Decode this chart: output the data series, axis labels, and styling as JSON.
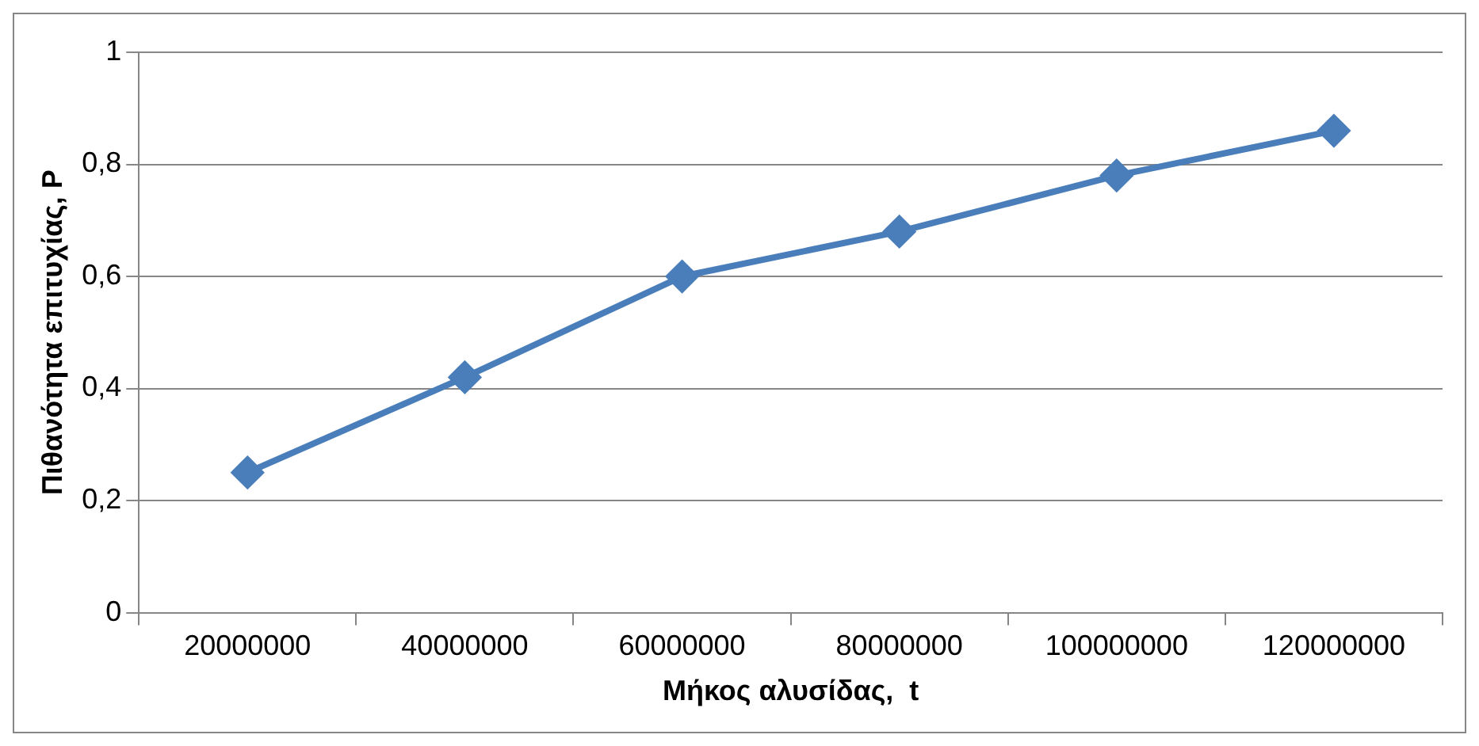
{
  "chart_data": {
    "type": "line",
    "xlabel": "Μήκος αλυσίδας,  t",
    "ylabel": "Πιθανότητα επιτυχίας, P",
    "categories": [
      "20000000",
      "40000000",
      "60000000",
      "80000000",
      "100000000",
      "120000000"
    ],
    "series": [
      {
        "color": "#4a7ebb",
        "values": [
          0.25,
          0.42,
          0.6,
          0.68,
          0.78,
          0.86
        ]
      }
    ],
    "ylim": [
      0,
      1
    ],
    "yticks": [
      0,
      {
        "value": 0.2,
        "label": "0,2"
      },
      {
        "value": 0.4,
        "label": "0,4"
      },
      {
        "value": 0.6,
        "label": "0,6"
      },
      {
        "value": 0.8,
        "label": "0,8"
      },
      1
    ],
    "grid": "y",
    "legend": false,
    "marker": "diamond",
    "line_style": "solid"
  }
}
